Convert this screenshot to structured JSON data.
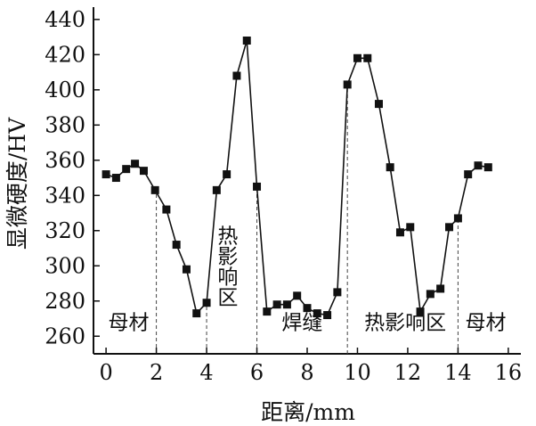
{
  "chart_data": {
    "type": "line",
    "xlabel": "距离/mm",
    "ylabel": "显微硬度/HV",
    "xlim": [
      -0.5,
      16.5
    ],
    "ylim": [
      250,
      447
    ],
    "xticks": [
      0,
      2,
      4,
      6,
      8,
      10,
      12,
      14,
      16
    ],
    "yticks": [
      260,
      280,
      300,
      320,
      340,
      360,
      380,
      400,
      420,
      440
    ],
    "grid": false,
    "marker": "square",
    "series": [
      {
        "x": [
          0,
          0.4,
          0.8,
          1.15,
          1.5,
          1.95,
          2.4,
          2.8,
          3.2,
          3.6,
          4.0,
          4.4,
          4.8,
          5.2,
          5.6,
          6.0,
          6.4,
          6.8,
          7.2,
          7.6,
          8.0,
          8.4,
          8.8,
          9.2,
          9.6,
          10.0,
          10.4,
          10.85,
          11.3,
          11.7,
          12.1,
          12.5,
          12.9,
          13.3,
          13.65,
          14.0,
          14.4,
          14.8,
          15.2
        ],
        "values": [
          352,
          350,
          355,
          358,
          354,
          343,
          332,
          312,
          298,
          273,
          279,
          343,
          352,
          408,
          428,
          345,
          274,
          278,
          278,
          283,
          276,
          273,
          272,
          285,
          403,
          418,
          418,
          392,
          356,
          319,
          322,
          274,
          284,
          287,
          322,
          327,
          352,
          357,
          356
        ]
      }
    ],
    "boundaries": [
      2,
      4,
      6,
      9.6,
      14
    ],
    "regions": [
      {
        "label": "母材",
        "x": 0.9,
        "y": 268,
        "vertical": false
      },
      {
        "label": "热影响区",
        "x": 4.7,
        "y": 300,
        "vertical": true
      },
      {
        "label": "焊缝",
        "x": 7.8,
        "y": 268,
        "vertical": false
      },
      {
        "label": "热影响区",
        "x": 11.9,
        "y": 268,
        "vertical": false
      },
      {
        "label": "母材",
        "x": 15.1,
        "y": 268,
        "vertical": false
      }
    ]
  }
}
